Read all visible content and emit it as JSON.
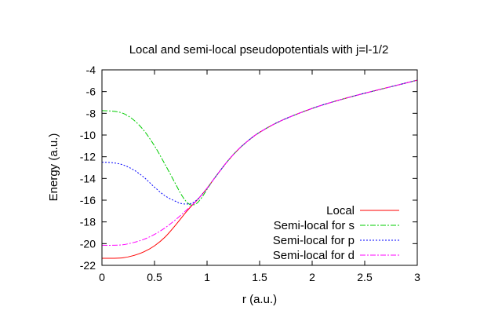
{
  "chart_data": {
    "type": "line",
    "title": "Local and semi-local pseudopotentials with j=l-1/2",
    "xlabel": "r (a.u.)",
    "ylabel": "Energy (a.u.)",
    "xlim": [
      0,
      3
    ],
    "ylim": [
      -22,
      -4
    ],
    "xticks": [
      0,
      0.5,
      1,
      1.5,
      2,
      2.5,
      3
    ],
    "xtick_labels": [
      "0",
      "0.5",
      "1",
      "1.5",
      "2",
      "2.5",
      "3"
    ],
    "yticks": [
      -22,
      -20,
      -18,
      -16,
      -14,
      -12,
      -10,
      -8,
      -6,
      -4
    ],
    "ytick_labels": [
      "-22",
      "-20",
      "-18",
      "-16",
      "-14",
      "-12",
      "-10",
      "-8",
      "-6",
      "-4"
    ],
    "grid": false,
    "legend_position": "bottom-right",
    "series": [
      {
        "name": "Local",
        "color": "#ff0000",
        "dash": "solid",
        "points": [
          [
            0,
            -21.35
          ],
          [
            0.1,
            -21.35
          ],
          [
            0.2,
            -21.3
          ],
          [
            0.3,
            -21.1
          ],
          [
            0.4,
            -20.75
          ],
          [
            0.5,
            -20.2
          ],
          [
            0.6,
            -19.4
          ],
          [
            0.7,
            -18.3
          ],
          [
            0.8,
            -17.1
          ],
          [
            0.85,
            -16.55
          ],
          [
            0.9,
            -16.05
          ],
          [
            0.95,
            -15.5
          ],
          [
            1.0,
            -14.9
          ],
          [
            1.05,
            -14.25
          ],
          [
            1.1,
            -13.6
          ],
          [
            1.2,
            -12.35
          ],
          [
            1.3,
            -11.3
          ],
          [
            1.4,
            -10.45
          ],
          [
            1.5,
            -9.75
          ],
          [
            1.7,
            -8.7
          ],
          [
            2.0,
            -7.55
          ],
          [
            2.25,
            -6.8
          ],
          [
            2.5,
            -6.15
          ],
          [
            2.75,
            -5.55
          ],
          [
            3.0,
            -4.95
          ]
        ]
      },
      {
        "name": "Semi-local for s",
        "color": "#00cc00",
        "dash": "dashdot",
        "points": [
          [
            0,
            -7.75
          ],
          [
            0.1,
            -7.8
          ],
          [
            0.2,
            -8.0
          ],
          [
            0.3,
            -8.6
          ],
          [
            0.4,
            -9.6
          ],
          [
            0.5,
            -11.0
          ],
          [
            0.6,
            -12.7
          ],
          [
            0.7,
            -14.5
          ],
          [
            0.75,
            -15.4
          ],
          [
            0.8,
            -16.1
          ],
          [
            0.85,
            -16.45
          ],
          [
            0.9,
            -16.3
          ],
          [
            0.95,
            -15.75
          ],
          [
            1.0,
            -15.0
          ],
          [
            1.05,
            -14.25
          ],
          [
            1.1,
            -13.6
          ],
          [
            1.2,
            -12.35
          ],
          [
            1.3,
            -11.3
          ],
          [
            1.4,
            -10.45
          ],
          [
            1.5,
            -9.75
          ],
          [
            1.7,
            -8.7
          ],
          [
            2.0,
            -7.55
          ],
          [
            2.25,
            -6.8
          ],
          [
            2.5,
            -6.15
          ],
          [
            2.75,
            -5.55
          ],
          [
            3.0,
            -4.95
          ]
        ]
      },
      {
        "name": "Semi-local for p",
        "color": "#0000ff",
        "dash": "dotted",
        "points": [
          [
            0,
            -12.5
          ],
          [
            0.1,
            -12.55
          ],
          [
            0.2,
            -12.75
          ],
          [
            0.3,
            -13.2
          ],
          [
            0.4,
            -13.9
          ],
          [
            0.5,
            -14.8
          ],
          [
            0.6,
            -15.6
          ],
          [
            0.7,
            -16.1
          ],
          [
            0.75,
            -16.3
          ],
          [
            0.8,
            -16.35
          ],
          [
            0.85,
            -16.3
          ],
          [
            0.9,
            -16.0
          ],
          [
            0.95,
            -15.5
          ],
          [
            1.0,
            -14.9
          ],
          [
            1.05,
            -14.25
          ],
          [
            1.1,
            -13.6
          ],
          [
            1.2,
            -12.35
          ],
          [
            1.3,
            -11.3
          ],
          [
            1.4,
            -10.45
          ],
          [
            1.5,
            -9.75
          ],
          [
            1.7,
            -8.7
          ],
          [
            2.0,
            -7.55
          ],
          [
            2.25,
            -6.8
          ],
          [
            2.5,
            -6.15
          ],
          [
            2.75,
            -5.55
          ],
          [
            3.0,
            -4.95
          ]
        ]
      },
      {
        "name": "Semi-local for d",
        "color": "#ff00ff",
        "dash": "dashdot",
        "points": [
          [
            0,
            -20.15
          ],
          [
            0.1,
            -20.15
          ],
          [
            0.2,
            -20.1
          ],
          [
            0.3,
            -19.9
          ],
          [
            0.4,
            -19.6
          ],
          [
            0.5,
            -19.15
          ],
          [
            0.6,
            -18.55
          ],
          [
            0.7,
            -17.8
          ],
          [
            0.8,
            -16.95
          ],
          [
            0.85,
            -16.5
          ],
          [
            0.9,
            -16.05
          ],
          [
            0.95,
            -15.5
          ],
          [
            1.0,
            -14.9
          ],
          [
            1.05,
            -14.25
          ],
          [
            1.1,
            -13.6
          ],
          [
            1.2,
            -12.35
          ],
          [
            1.3,
            -11.3
          ],
          [
            1.4,
            -10.45
          ],
          [
            1.5,
            -9.75
          ],
          [
            1.7,
            -8.7
          ],
          [
            2.0,
            -7.55
          ],
          [
            2.25,
            -6.8
          ],
          [
            2.5,
            -6.15
          ],
          [
            2.75,
            -5.55
          ],
          [
            3.0,
            -4.95
          ]
        ]
      }
    ]
  }
}
